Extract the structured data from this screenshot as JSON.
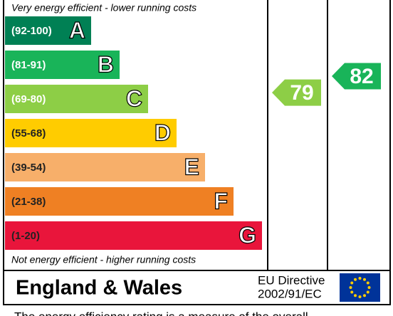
{
  "chart_data": {
    "type": "epc",
    "top_note": "Very energy efficient - lower running costs",
    "bottom_note": "Not energy efficient - higher running costs",
    "bands": [
      {
        "range": "(92-100)",
        "letter": "A",
        "color": "#008054"
      },
      {
        "range": "(81-91)",
        "letter": "B",
        "color": "#19b459"
      },
      {
        "range": "(69-80)",
        "letter": "C",
        "color": "#8dce46"
      },
      {
        "range": "(55-68)",
        "letter": "D",
        "color": "#ffcc00"
      },
      {
        "range": "(39-54)",
        "letter": "E",
        "color": "#f7af6a"
      },
      {
        "range": "(21-38)",
        "letter": "F",
        "color": "#ef8023"
      },
      {
        "range": "(1-20)",
        "letter": "G",
        "color": "#e9153b"
      }
    ],
    "current": {
      "value": 79,
      "color": "#8dce46"
    },
    "potential": {
      "value": 82,
      "color": "#19b459"
    },
    "region": "England & Wales",
    "directive_line1": "EU Directive",
    "directive_line2": "2002/91/EC",
    "footnote": "The energy efficiency rating is a measure of the overall"
  }
}
